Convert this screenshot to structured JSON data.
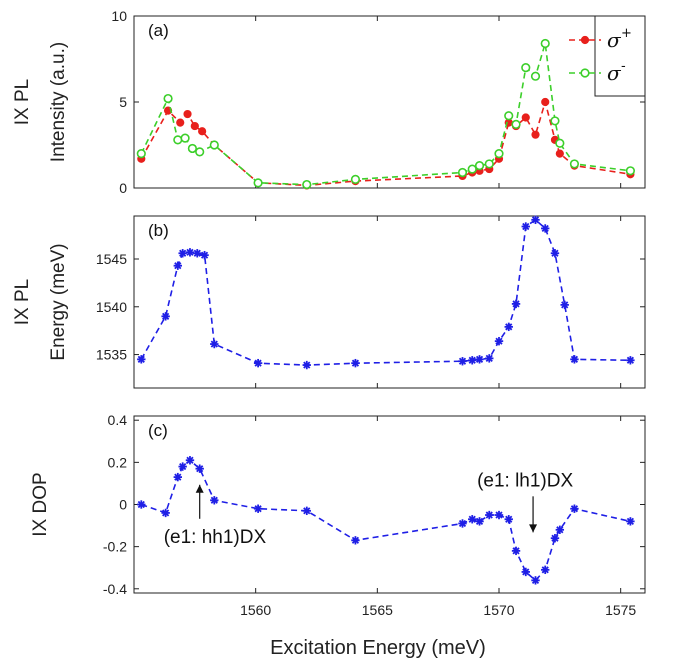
{
  "chart_data": [
    {
      "id": "a",
      "type": "line",
      "panel_label": "(a)",
      "ylabel_lines": [
        "IX PL",
        "Intensity (a.u.)"
      ],
      "xlim": [
        1555,
        1576
      ],
      "ylim": [
        0,
        10
      ],
      "yticks": [
        0,
        5,
        10
      ],
      "yticklabels": [
        "0",
        "5",
        "10"
      ],
      "legend": {
        "position": "top-right",
        "entries": [
          {
            "series": 0,
            "symbol": "σ",
            "sup": "+"
          },
          {
            "series": 1,
            "symbol": "σ",
            "sup": "-"
          }
        ]
      },
      "series": [
        {
          "color": "#e8201c",
          "marker": "filled-circle",
          "x": [
            1555.3,
            1556.4,
            1556.9,
            1557.2,
            1557.5,
            1557.8,
            1558.3,
            1560.1,
            1562.1,
            1564.1,
            1568.5,
            1568.9,
            1569.2,
            1569.6,
            1570.0,
            1570.4,
            1570.7,
            1571.1,
            1571.5,
            1571.9,
            1572.3,
            1572.5,
            1573.1,
            1575.4
          ],
          "y": [
            1.7,
            4.5,
            3.8,
            4.3,
            3.6,
            3.3,
            2.5,
            0.3,
            0.15,
            0.4,
            0.7,
            0.9,
            1.0,
            1.1,
            1.7,
            3.8,
            3.6,
            4.1,
            3.1,
            5.0,
            2.8,
            2.0,
            1.3,
            0.8
          ]
        },
        {
          "color": "#3ccf2a",
          "marker": "open-circle",
          "x": [
            1555.3,
            1556.4,
            1556.8,
            1557.1,
            1557.4,
            1557.7,
            1558.3,
            1560.1,
            1562.1,
            1564.1,
            1568.5,
            1568.9,
            1569.2,
            1569.6,
            1570.0,
            1570.4,
            1570.7,
            1571.1,
            1571.5,
            1571.9,
            1572.3,
            1572.5,
            1573.1,
            1575.4
          ],
          "y": [
            2.0,
            5.2,
            2.8,
            2.9,
            2.3,
            2.1,
            2.5,
            0.3,
            0.2,
            0.5,
            0.9,
            1.1,
            1.3,
            1.4,
            2.0,
            4.2,
            3.7,
            7.0,
            6.5,
            8.4,
            3.9,
            2.6,
            1.4,
            1.0
          ]
        }
      ]
    },
    {
      "id": "b",
      "type": "line",
      "panel_label": "(b)",
      "ylabel_lines": [
        "IX PL",
        "Energy (meV)"
      ],
      "xlim": [
        1555,
        1576
      ],
      "ylim": [
        1531.5,
        1549.5
      ],
      "yticks": [
        1535,
        1540,
        1545
      ],
      "yticklabels": [
        "1535",
        "1540",
        "1545"
      ],
      "series": [
        {
          "color": "#1f1fe6",
          "marker": "asterisk",
          "x": [
            1555.3,
            1556.3,
            1556.8,
            1557.0,
            1557.3,
            1557.6,
            1557.9,
            1558.3,
            1560.1,
            1562.1,
            1564.1,
            1568.5,
            1568.9,
            1569.2,
            1569.6,
            1570.0,
            1570.4,
            1570.7,
            1571.1,
            1571.5,
            1571.9,
            1572.3,
            1572.7,
            1573.1,
            1575.4
          ],
          "y": [
            1534.5,
            1539.0,
            1544.3,
            1545.6,
            1545.7,
            1545.6,
            1545.4,
            1536.1,
            1534.1,
            1533.9,
            1534.1,
            1534.3,
            1534.4,
            1534.5,
            1534.6,
            1536.4,
            1537.9,
            1540.3,
            1548.4,
            1549.1,
            1548.2,
            1545.6,
            1540.2,
            1534.5,
            1534.4
          ]
        }
      ]
    },
    {
      "id": "c",
      "type": "line",
      "panel_label": "(c)",
      "ylabel_lines": [
        "IX DOP"
      ],
      "xlim": [
        1555,
        1576
      ],
      "ylim": [
        -0.42,
        0.42
      ],
      "yticks": [
        -0.4,
        -0.2,
        0,
        0.2,
        0.4
      ],
      "yticklabels": [
        "-0.4",
        "-0.2",
        "0",
        "0.2",
        "0.4"
      ],
      "xticks": [
        1560,
        1565,
        1570,
        1575
      ],
      "xticklabels": [
        "1560",
        "1565",
        "1570",
        "1575"
      ],
      "xlabel": "Excitation Energy (meV)",
      "annotations": [
        {
          "text": "(e1: hh1)DX",
          "x": 1557.7,
          "y": 0.16,
          "placement": "below"
        },
        {
          "text": "(e1: lh1)DX",
          "x": 1571.4,
          "y": -0.17,
          "placement": "above"
        }
      ],
      "series": [
        {
          "color": "#1f1fe6",
          "marker": "asterisk",
          "x": [
            1555.3,
            1556.3,
            1556.8,
            1557.0,
            1557.3,
            1557.7,
            1558.3,
            1560.1,
            1562.1,
            1564.1,
            1568.5,
            1568.9,
            1569.2,
            1569.6,
            1570.0,
            1570.4,
            1570.7,
            1571.1,
            1571.5,
            1571.9,
            1572.3,
            1572.5,
            1573.1,
            1575.4
          ],
          "y": [
            0.0,
            -0.04,
            0.13,
            0.18,
            0.21,
            0.17,
            0.02,
            -0.02,
            -0.03,
            -0.17,
            -0.09,
            -0.07,
            -0.08,
            -0.05,
            -0.05,
            -0.07,
            -0.22,
            -0.32,
            -0.36,
            -0.31,
            -0.16,
            -0.12,
            -0.02,
            -0.08
          ]
        }
      ]
    }
  ]
}
